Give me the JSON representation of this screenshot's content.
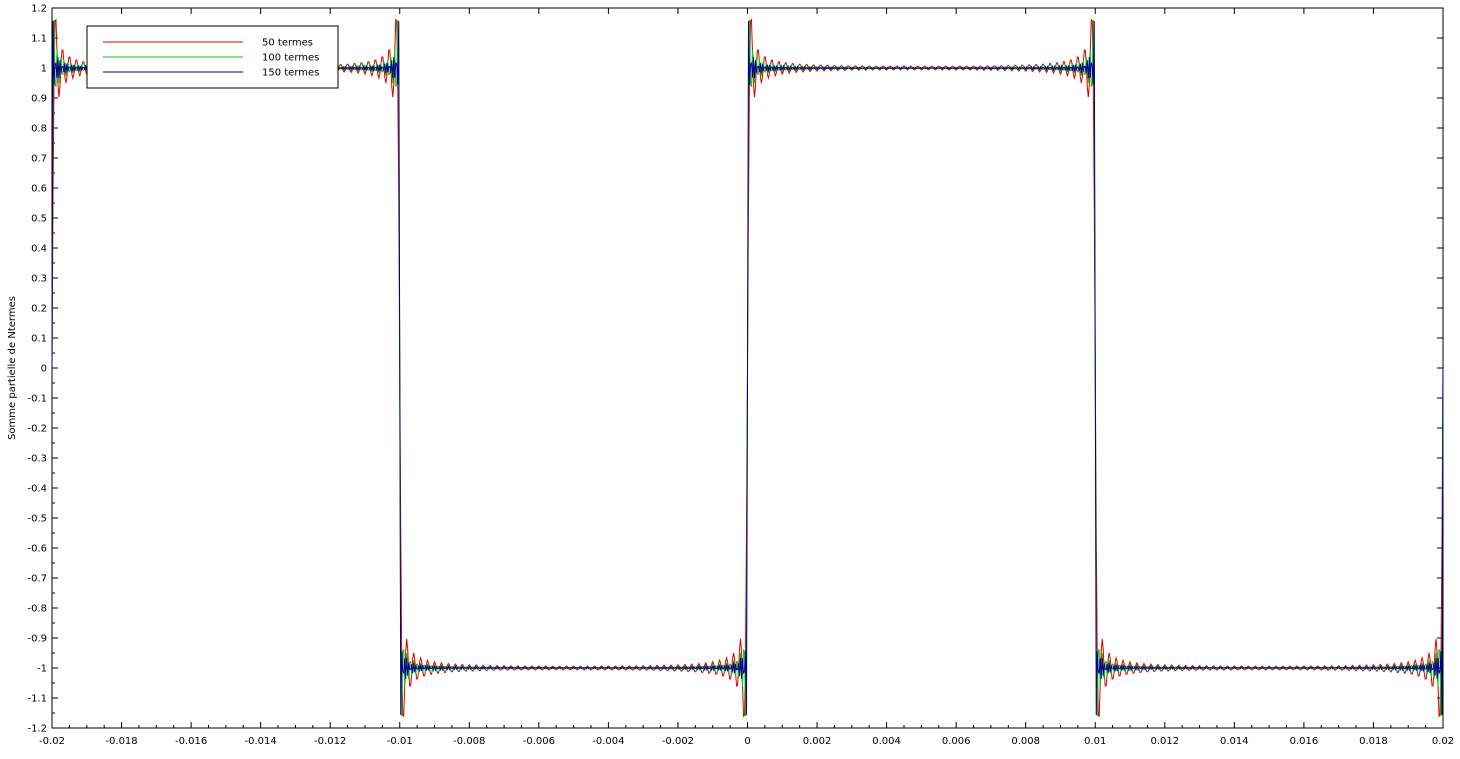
{
  "chart_data": {
    "type": "line",
    "title": "",
    "xlabel": "",
    "ylabel": "Somme partielle de Ntermes",
    "xlim": [
      -0.02,
      0.02
    ],
    "ylim": [
      -1.2,
      1.2
    ],
    "grid": false,
    "legend_position": "top-left",
    "x_ticks": [
      "-0.02",
      "-0.018",
      "-0.016",
      "-0.014",
      "-0.012",
      "-0.01",
      "-0.008",
      "-0.006",
      "-0.004",
      "-0.002",
      "0",
      "0.002",
      "0.004",
      "0.006",
      "0.008",
      "0.01",
      "0.012",
      "0.014",
      "0.016",
      "0.018",
      "0.02"
    ],
    "y_ticks": [
      "1.2",
      "1.1",
      "1",
      "0.9",
      "0.8",
      "0.7",
      "0.6",
      "0.5",
      "0.4",
      "0.3",
      "0.2",
      "0.1",
      "0",
      "-0.1",
      "-0.2",
      "-0.3",
      "-0.4",
      "-0.5",
      "-0.6",
      "-0.7",
      "-0.8",
      "-0.9",
      "-1",
      "-1.1",
      "-1.2"
    ],
    "fundamental_frequency_hz": 50,
    "series": [
      {
        "name": "50 termes",
        "terms": 50,
        "color": "#e00000"
      },
      {
        "name": "100 termes",
        "terms": 100,
        "color": "#00d000"
      },
      {
        "name": "150 termes",
        "terms": 150,
        "color": "#000090"
      }
    ]
  }
}
